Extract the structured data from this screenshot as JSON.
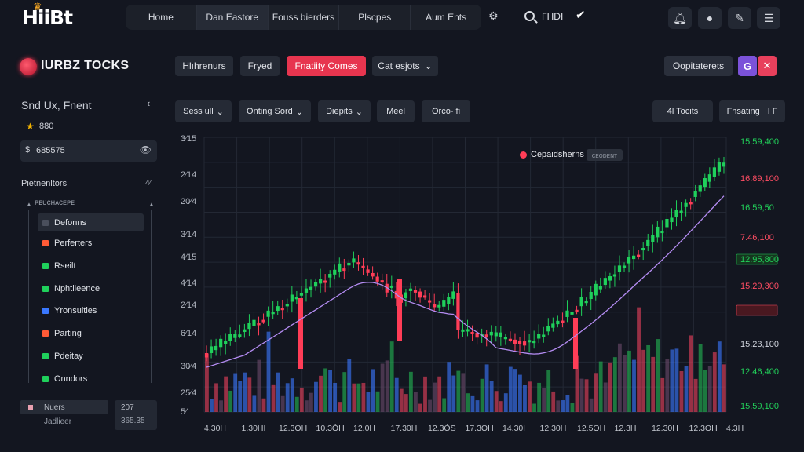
{
  "app": {
    "logo": "HiiBt",
    "brand": "IURBZ TOCKS"
  },
  "topnav": {
    "items": [
      "Home",
      "Dan Eastore",
      "Fouss bierders",
      "Plscpes",
      "Aum Ents"
    ],
    "search_text": "ΓHDI"
  },
  "header": {
    "pills": [
      "Hlıhrenurs",
      "Fryed",
      "Fnatiity Comes",
      "Cat esjots"
    ],
    "right_button": "Oopitaterets"
  },
  "sidebar": {
    "title": "Snd Ux, Fnent",
    "collapse": "‹",
    "star_value": "880",
    "balance": "685575",
    "section": "Pietnenltors",
    "section_right": "4⁄",
    "sub": "ᴘᴇᴜᴄʜᴀᴄᴇᴘᴇ",
    "items": [
      {
        "label": "Defonns",
        "color": "#4a4f5c"
      },
      {
        "label": "Perferters",
        "color": "#ff5a36"
      },
      {
        "label": "Rseilt",
        "color": "#1fd05b"
      },
      {
        "label": "Nphtlieence",
        "color": "#1fd05b"
      },
      {
        "label": "Yronsulties",
        "color": "#3a78ff"
      },
      {
        "label": "Parting",
        "color": "#ff5a36"
      },
      {
        "label": "Pdeitay",
        "color": "#1fd05b"
      },
      {
        "label": "Onndors",
        "color": "#1fd05b"
      }
    ],
    "footer": {
      "row1": "Nuers",
      "row2": "Jadlieer",
      "val1": "207",
      "val2": "365.35"
    }
  },
  "toolbar": {
    "left": [
      "Sess ull",
      "Onting Sord",
      "Diepits",
      "Meel",
      "Orco- fi"
    ],
    "right": [
      "4l Tocits",
      "Fnsating"
    ]
  },
  "chart_data": {
    "type": "candlestick",
    "legend": {
      "label": "Cepaidsherns",
      "tag": "ᴄᴇᴏᴅᴇɴᴛ"
    },
    "y_ticks_left": [
      "3⁄15",
      "2⁄14",
      "20⁄4",
      "3⁄14",
      "4⁄15",
      "4⁄14",
      "2⁄14",
      "6⁄14",
      "30⁄4",
      "25⁄4",
      "5⁄"
    ],
    "y_ticks_right": [
      {
        "label": "15.59,400",
        "color": "#22d15a"
      },
      {
        "label": "16.89,100",
        "color": "#ff4d63"
      },
      {
        "label": "16.59,50",
        "color": "#22d15a"
      },
      {
        "label": "7.46,100",
        "color": "#ff4d63"
      },
      {
        "label": "12.95,800",
        "color": "#22d15a",
        "boxed": true
      },
      {
        "label": "15.29,300",
        "color": "#ff4d63"
      },
      {
        "label": "",
        "color": "#ff4d63",
        "boxed": true
      },
      {
        "label": "15.23,100",
        "color": "#cfd3dc"
      },
      {
        "label": "12.46,400",
        "color": "#22d15a"
      },
      {
        "label": "15.59,100",
        "color": "#22d15a"
      }
    ],
    "x_ticks": [
      "4.30H",
      "1.30HI",
      "12.3OH",
      "10.3ÓH",
      "12.0H",
      "17.30H",
      "12.3ÓS",
      "17.3OH",
      "14.30H",
      "12.30H",
      "12.5OH",
      "12.3H",
      "12.30H",
      "12.3OH",
      "4.3H"
    ],
    "colors": {
      "up": "#1fd05b",
      "down": "#ff3d57",
      "ma": "#b48cf2",
      "vol_blue": "#3a78ff"
    }
  }
}
